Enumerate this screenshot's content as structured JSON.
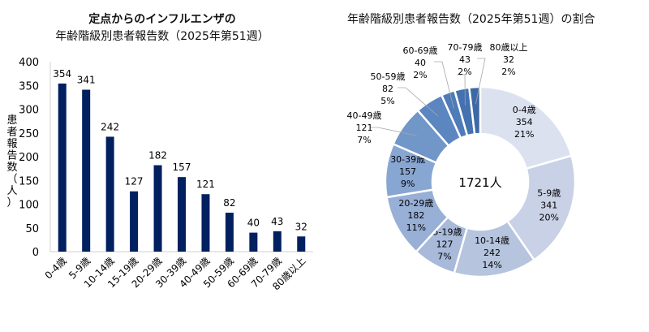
{
  "chart_data": [
    {
      "type": "bar",
      "title": [
        "定点からのインフルエンザの",
        "年齢階級別患者報告数（2025年第51週）"
      ],
      "ylabel": "患者報告数（人）",
      "xlabel": "",
      "categories": [
        "0-4歳",
        "5-9歳",
        "10-14歳",
        "15-19歳",
        "20-29歳",
        "30-39歳",
        "40-49歳",
        "50-59歳",
        "60-69歳",
        "70-79歳",
        "80歳以上"
      ],
      "values": [
        354,
        341,
        242,
        127,
        182,
        157,
        121,
        82,
        40,
        43,
        32
      ],
      "ylim": [
        0,
        400
      ],
      "yticks": [
        0,
        50,
        100,
        150,
        200,
        250,
        300,
        350,
        400
      ],
      "grid": false,
      "bar_color": "#002060",
      "data_labels": true
    },
    {
      "type": "pie",
      "donut": true,
      "title": "年齢階級別患者報告数（2025年第51週）の割合",
      "center_label": "1721人",
      "categories": [
        "0-4歳",
        "5-9歳",
        "10-14歳",
        "15-19歳",
        "20-29歳",
        "30-39歳",
        "40-49歳",
        "50-59歳",
        "60-69歳",
        "70-79歳",
        "80歳以上"
      ],
      "values": [
        354,
        341,
        242,
        127,
        182,
        157,
        121,
        82,
        40,
        43,
        32
      ],
      "percents": [
        "21%",
        "20%",
        "14%",
        "7%",
        "11%",
        "9%",
        "7%",
        "5%",
        "2%",
        "2%",
        "2%"
      ],
      "colors": [
        "#dbe1ee",
        "#c8d1e5",
        "#b6c4de",
        "#a8b9da",
        "#98afd6",
        "#88a6d2",
        "#7196c8",
        "#5b86c0",
        "#4e7bb9",
        "#4471b0",
        "#3d68a6"
      ]
    }
  ]
}
